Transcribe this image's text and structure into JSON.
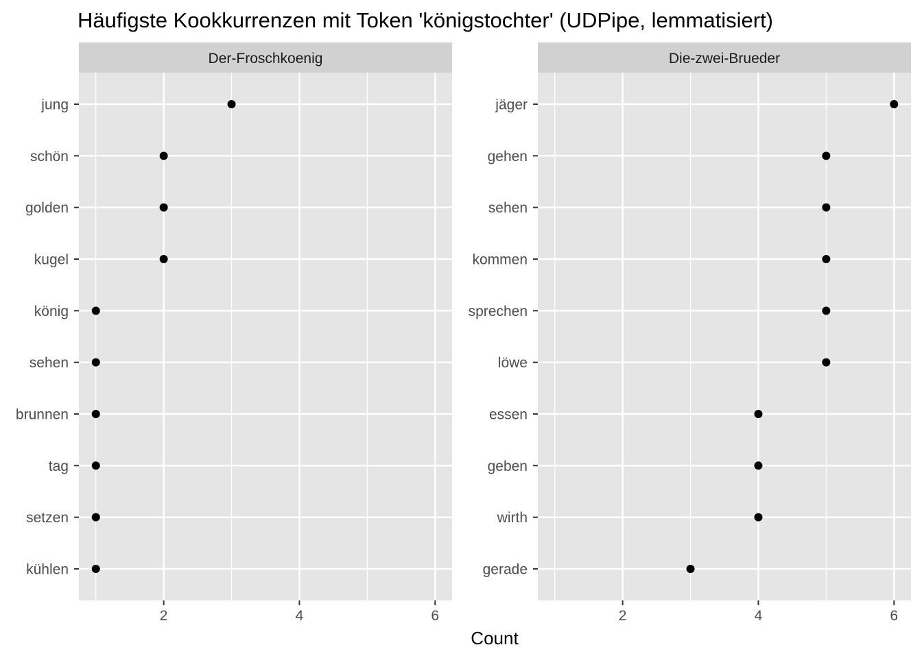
{
  "chart_data": {
    "type": "scatter",
    "title": "Häufigste Kookkurrenzen mit Token 'königstochter' (UDPipe, lemmatisiert)",
    "xlabel": "Count",
    "ylabel": "",
    "xlim": [
      0.75,
      6.25
    ],
    "xticks": [
      2,
      4,
      6
    ],
    "grid": true,
    "colors": {
      "panel_background": "#e5e5e5",
      "strip_background": "#d1d1d1",
      "grid": "#ffffff",
      "point": "#000000",
      "tick_label": "#4d4d4d"
    },
    "panels": [
      {
        "name": "Der-Froschkoenig",
        "categories": [
          "jung",
          "schön",
          "golden",
          "kugel",
          "könig",
          "sehen",
          "brunnen",
          "tag",
          "setzen",
          "kühlen"
        ],
        "values": [
          3,
          2,
          2,
          2,
          1,
          1,
          1,
          1,
          1,
          1
        ]
      },
      {
        "name": "Die-zwei-Brueder",
        "categories": [
          "jäger",
          "gehen",
          "sehen",
          "kommen",
          "sprechen",
          "löwe",
          "essen",
          "geben",
          "wirth",
          "gerade"
        ],
        "values": [
          6,
          5,
          5,
          5,
          5,
          5,
          4,
          4,
          4,
          3
        ]
      }
    ]
  }
}
